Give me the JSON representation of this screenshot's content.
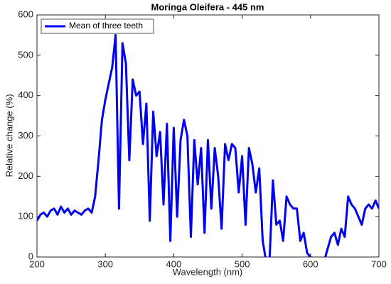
{
  "chart_data": {
    "type": "line",
    "title": "Moringa Oleifera - 445 nm",
    "x_label": "Wavelength (nm)",
    "y_label": "Relative change (%)",
    "x": [
      200,
      205,
      210,
      215,
      220,
      225,
      230,
      235,
      240,
      245,
      250,
      255,
      260,
      265,
      270,
      275,
      280,
      285,
      290,
      295,
      300,
      305,
      310,
      315,
      320,
      325,
      330,
      335,
      340,
      345,
      350,
      355,
      360,
      365,
      370,
      375,
      380,
      385,
      390,
      395,
      400,
      405,
      410,
      415,
      420,
      425,
      430,
      435,
      440,
      445,
      450,
      455,
      460,
      465,
      470,
      475,
      480,
      485,
      490,
      495,
      500,
      505,
      510,
      515,
      520,
      525,
      530,
      535,
      540,
      545,
      550,
      555,
      560,
      565,
      570,
      575,
      580,
      585,
      590,
      595,
      600,
      605,
      610,
      615,
      620,
      625,
      630,
      635,
      640,
      645,
      650,
      655,
      660,
      665,
      670,
      675,
      680,
      685,
      690,
      695,
      700
    ],
    "series": [
      {
        "name": "Mean of three teeth",
        "color": "#0000f0",
        "values": [
          90,
          105,
          110,
          100,
          115,
          120,
          105,
          125,
          110,
          120,
          105,
          115,
          110,
          105,
          115,
          120,
          110,
          150,
          240,
          340,
          390,
          430,
          470,
          550,
          120,
          530,
          480,
          240,
          440,
          400,
          410,
          280,
          380,
          90,
          360,
          250,
          310,
          130,
          330,
          40,
          320,
          100,
          290,
          340,
          300,
          50,
          290,
          180,
          270,
          60,
          290,
          120,
          270,
          200,
          70,
          280,
          240,
          280,
          270,
          160,
          250,
          80,
          270,
          230,
          160,
          220,
          40,
          -10,
          -10,
          190,
          80,
          90,
          40,
          150,
          130,
          120,
          120,
          40,
          60,
          10,
          0,
          -10,
          -10,
          -10,
          -10,
          20,
          50,
          60,
          30,
          70,
          50,
          150,
          130,
          120,
          100,
          80,
          120,
          130,
          120,
          140,
          120
        ]
      }
    ],
    "xlim": [
      200,
      700
    ],
    "ylim": [
      0,
      600
    ],
    "xticks": [
      200,
      300,
      400,
      500,
      600,
      700
    ],
    "yticks": [
      0,
      100,
      200,
      300,
      400,
      500,
      600
    ],
    "legend": "upper left"
  }
}
